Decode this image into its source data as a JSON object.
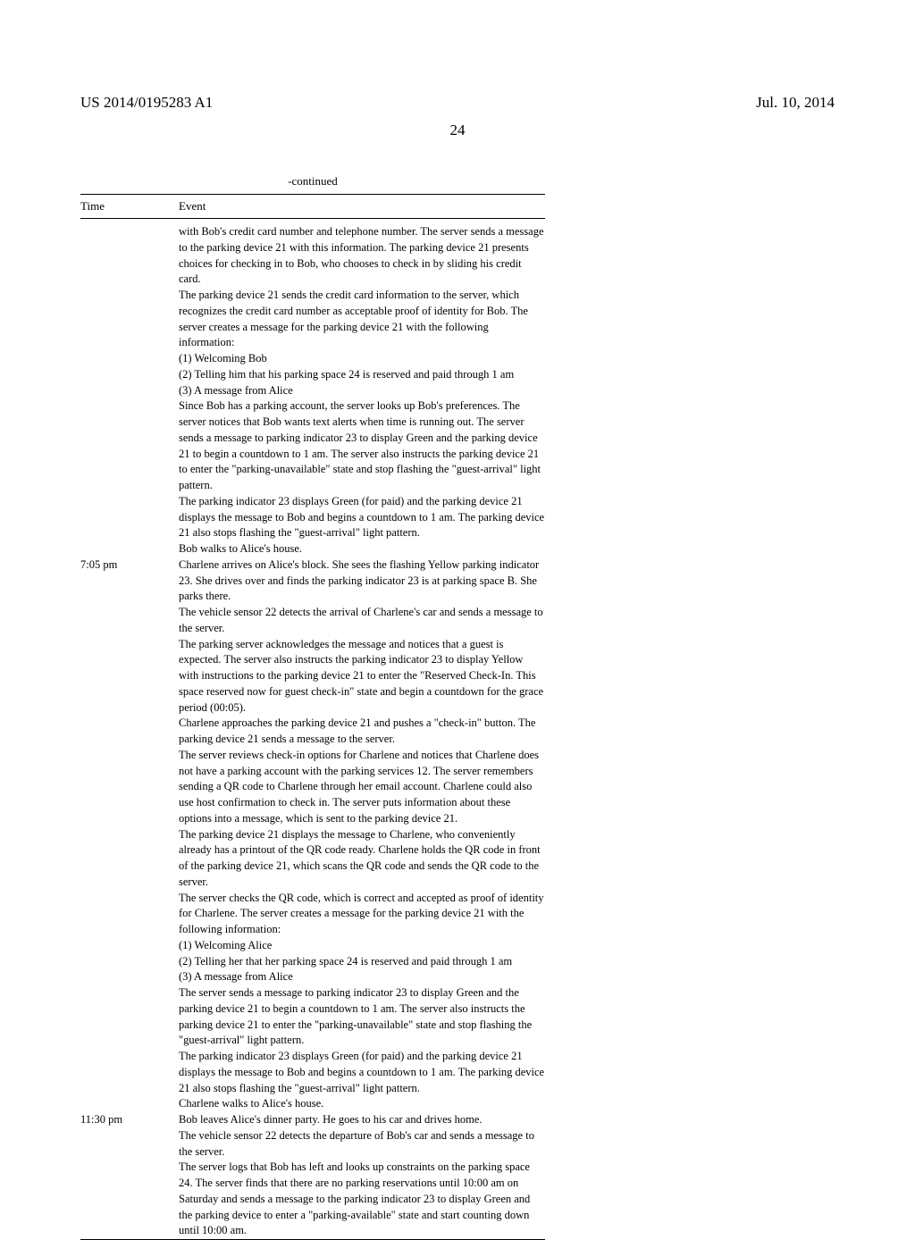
{
  "header": {
    "patent_id": "US 2014/0195283 A1",
    "date": "Jul. 10, 2014",
    "page_number": "24"
  },
  "table": {
    "continued_label": "-continued",
    "columns": {
      "time": "Time",
      "event": "Event"
    },
    "rows": [
      {
        "time": "",
        "paragraphs": [
          "with Bob's credit card number and telephone number. The server sends a message to the parking device 21 with this information. The parking device 21 presents choices for checking in to Bob, who chooses to check in by sliding his credit card.",
          "The parking device 21 sends the credit card information to the server, which recognizes the credit card number as acceptable proof of identity for Bob. The server creates a message for the parking device 21 with the following information:",
          "(1) Welcoming Bob",
          "(2) Telling him that his parking space 24 is reserved and paid through 1 am",
          "(3) A message from Alice",
          "Since Bob has a parking account, the server looks up Bob's preferences. The server notices that Bob wants text alerts when time is running out. The server sends a message to parking indicator 23 to display Green and the parking device 21 to begin a countdown to 1 am. The server also instructs the parking device 21 to enter the \"parking-unavailable\" state and stop flashing the \"guest-arrival\" light pattern.",
          "The parking indicator 23 displays Green (for paid) and the parking device 21 displays the message to Bob and begins a countdown to 1 am. The parking device 21 also stops flashing the \"guest-arrival\" light pattern.",
          "Bob walks to Alice's house."
        ]
      },
      {
        "time": "7:05 pm",
        "paragraphs": [
          "Charlene arrives on Alice's block. She sees the flashing Yellow parking indicator 23. She drives over and finds the parking indicator 23 is at parking space B. She parks there.",
          "The vehicle sensor 22 detects the arrival of Charlene's car and sends a message to the server.",
          "The parking server acknowledges the message and notices that a guest is expected. The server also instructs the parking indicator 23 to display Yellow with instructions to the parking device 21 to enter the \"Reserved Check-In. This space reserved now for guest check-in\" state and begin a countdown for the grace period (00:05).",
          "Charlene approaches the parking device 21 and pushes a \"check-in\" button. The parking device 21 sends a message to the server.",
          "The server reviews check-in options for Charlene and notices that Charlene does not have a parking account with the parking services 12. The server remembers sending a QR code to Charlene through her email account. Charlene could also use host confirmation to check in. The server puts information about these options into a message, which is sent to the parking device 21.",
          "The parking device 21 displays the message to Charlene, who conveniently already has a printout of the QR code ready. Charlene holds the QR code in front of the parking device 21, which scans the QR code and sends the QR code to the server.",
          "The server checks the QR code, which is correct and accepted as proof of identity for Charlene. The server creates a message for the parking device 21 with the following information:",
          "(1) Welcoming Alice",
          "(2) Telling her that her parking space 24 is reserved and paid through 1 am",
          "(3) A message from Alice",
          "The server sends a message to parking indicator 23 to display Green and the parking device 21 to begin a countdown to 1 am. The server also instructs the parking device 21 to enter the \"parking-unavailable\" state and stop flashing the \"guest-arrival\" light pattern.",
          "The parking indicator 23 displays Green (for paid) and the parking device 21 displays the message to Bob and begins a countdown to 1 am. The parking device 21 also stops flashing the \"guest-arrival\" light pattern.",
          "Charlene walks to Alice's house."
        ]
      },
      {
        "time": "11:30 pm",
        "paragraphs": [
          "Bob leaves Alice's dinner party. He goes to his car and drives home.",
          "The vehicle sensor 22 detects the departure of Bob's car and sends a message to the server.",
          "The server logs that Bob has left and looks up constraints on the parking space 24. The server finds that there are no parking reservations until 10:00 am on Saturday and sends a message to the parking indicator 23 to display Green and the parking device to enter a \"parking-available\" state and start counting down until 10:00 am."
        ]
      }
    ]
  }
}
